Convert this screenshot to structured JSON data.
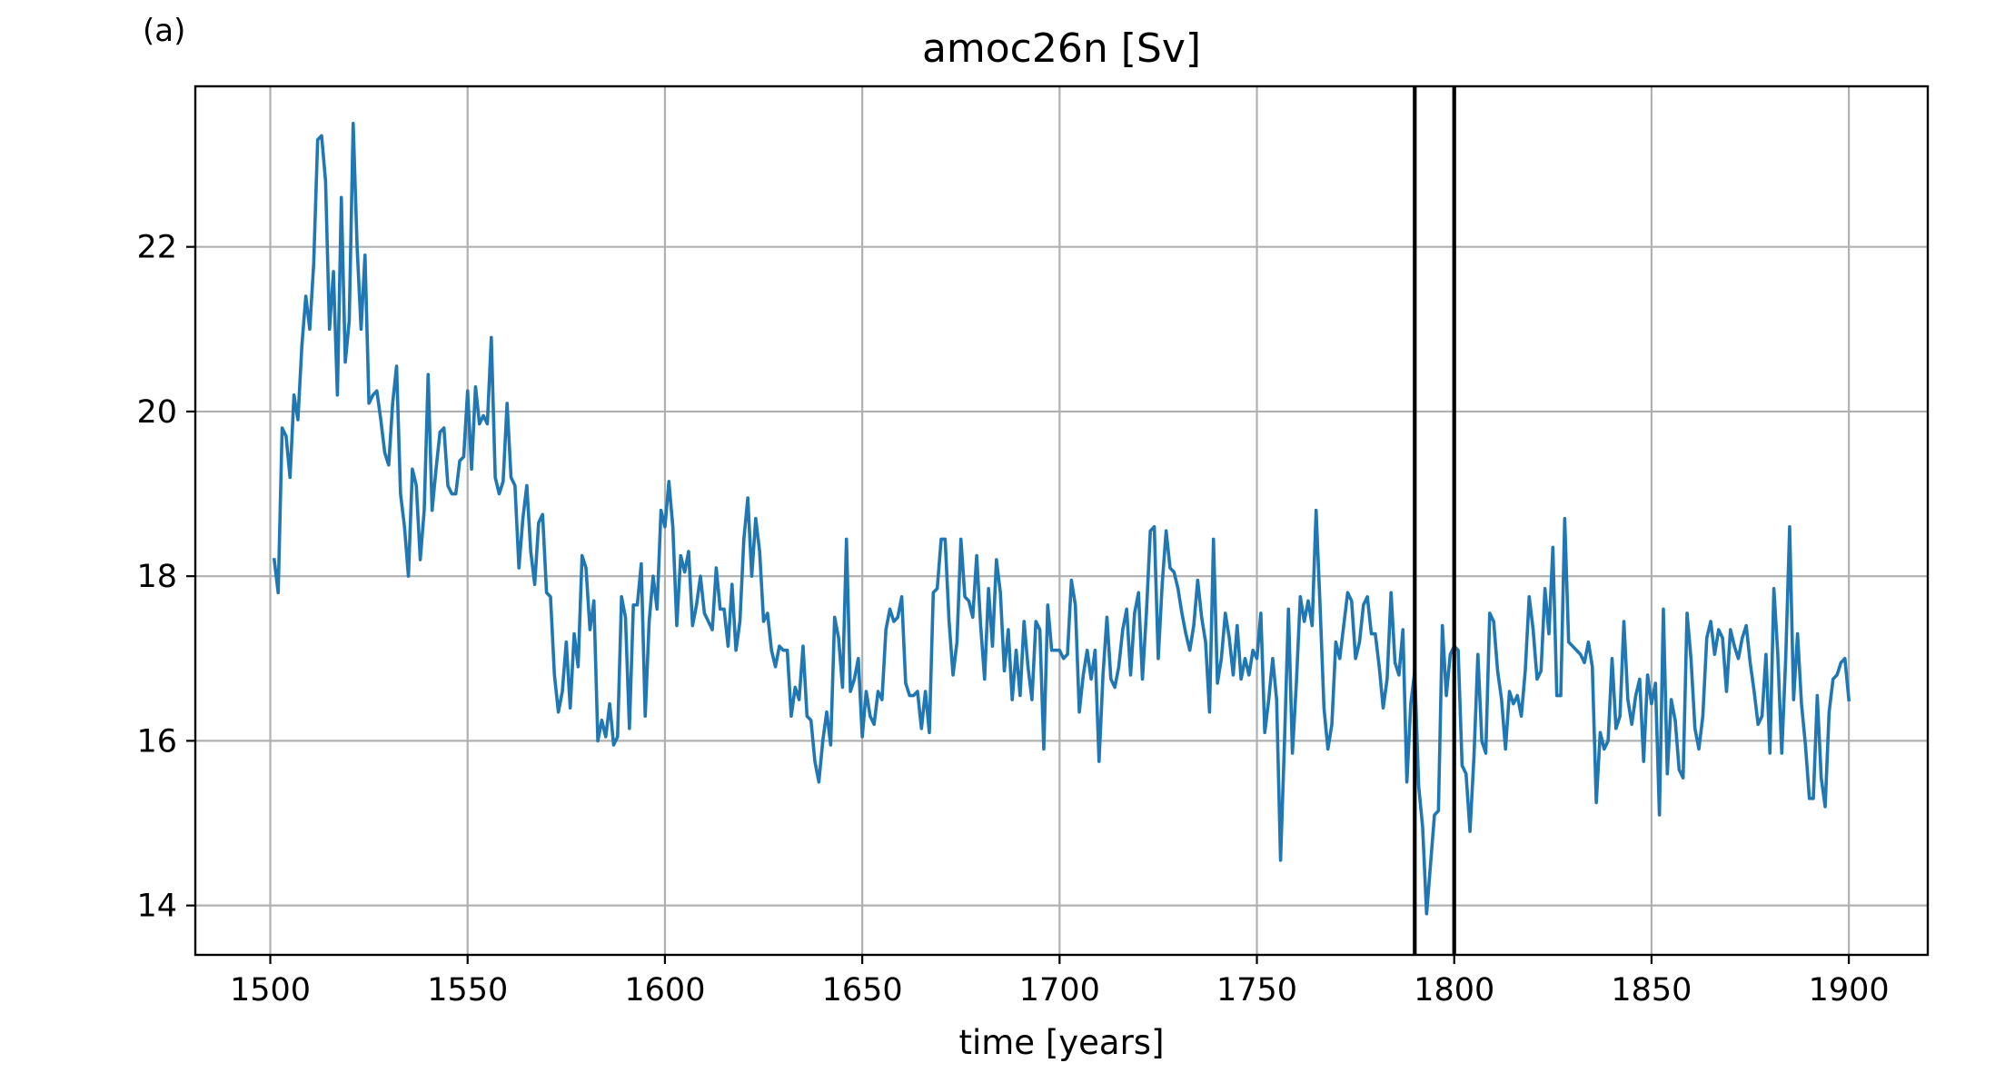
{
  "panel_label": "(a)",
  "chart_data": {
    "type": "line",
    "title": "amoc26n [Sv]",
    "xlabel": "time [years]",
    "ylabel": "",
    "xlim": [
      1481,
      1920
    ],
    "ylim": [
      13.4,
      23.95
    ],
    "xticks": [
      1500,
      1550,
      1600,
      1650,
      1700,
      1750,
      1800,
      1850,
      1900
    ],
    "yticks": [
      14,
      16,
      18,
      20,
      22
    ],
    "grid": true,
    "line_color": "#1f77b4",
    "vlines": [
      1790,
      1800
    ],
    "vline_color": "#000000",
    "series": [
      {
        "name": "",
        "x": [
          1501,
          1502,
          1503,
          1504,
          1505,
          1506,
          1507,
          1508,
          1509,
          1510,
          1511,
          1512,
          1513,
          1514,
          1515,
          1516,
          1517,
          1518,
          1519,
          1520,
          1521,
          1522,
          1523,
          1524,
          1525,
          1526,
          1527,
          1528,
          1529,
          1530,
          1531,
          1532,
          1533,
          1534,
          1535,
          1536,
          1537,
          1538,
          1539,
          1540,
          1541,
          1542,
          1543,
          1544,
          1545,
          1546,
          1547,
          1548,
          1549,
          1550,
          1551,
          1552,
          1553,
          1554,
          1555,
          1556,
          1557,
          1558,
          1559,
          1560,
          1561,
          1562,
          1563,
          1564,
          1565,
          1566,
          1567,
          1568,
          1569,
          1570,
          1571,
          1572,
          1573,
          1574,
          1575,
          1576,
          1577,
          1578,
          1579,
          1580,
          1581,
          1582,
          1583,
          1584,
          1585,
          1586,
          1587,
          1588,
          1589,
          1590,
          1591,
          1592,
          1593,
          1594,
          1595,
          1596,
          1597,
          1598,
          1599,
          1600,
          1601,
          1602,
          1603,
          1604,
          1605,
          1606,
          1607,
          1608,
          1609,
          1610,
          1611,
          1612,
          1613,
          1614,
          1615,
          1616,
          1617,
          1618,
          1619,
          1620,
          1621,
          1622,
          1623,
          1624,
          1625,
          1626,
          1627,
          1628,
          1629,
          1630,
          1631,
          1632,
          1633,
          1634,
          1635,
          1636,
          1637,
          1638,
          1639,
          1640,
          1641,
          1642,
          1643,
          1644,
          1645,
          1646,
          1647,
          1648,
          1649,
          1650,
          1651,
          1652,
          1653,
          1654,
          1655,
          1656,
          1657,
          1658,
          1659,
          1660,
          1661,
          1662,
          1663,
          1664,
          1665,
          1666,
          1667,
          1668,
          1669,
          1670,
          1671,
          1672,
          1673,
          1674,
          1675,
          1676,
          1677,
          1678,
          1679,
          1680,
          1681,
          1682,
          1683,
          1684,
          1685,
          1686,
          1687,
          1688,
          1689,
          1690,
          1691,
          1692,
          1693,
          1694,
          1695,
          1696,
          1697,
          1698,
          1699,
          1700,
          1701,
          1702,
          1703,
          1704,
          1705,
          1706,
          1707,
          1708,
          1709,
          1710,
          1711,
          1712,
          1713,
          1714,
          1715,
          1716,
          1717,
          1718,
          1719,
          1720,
          1721,
          1722,
          1723,
          1724,
          1725,
          1726,
          1727,
          1728,
          1729,
          1730,
          1731,
          1732,
          1733,
          1734,
          1735,
          1736,
          1737,
          1738,
          1739,
          1740,
          1741,
          1742,
          1743,
          1744,
          1745,
          1746,
          1747,
          1748,
          1749,
          1750,
          1751,
          1752,
          1753,
          1754,
          1755,
          1756,
          1757,
          1758,
          1759,
          1760,
          1761,
          1762,
          1763,
          1764,
          1765,
          1766,
          1767,
          1768,
          1769,
          1770,
          1771,
          1772,
          1773,
          1774,
          1775,
          1776,
          1777,
          1778,
          1779,
          1780,
          1781,
          1782,
          1783,
          1784,
          1785,
          1786,
          1787,
          1788,
          1789,
          1790,
          1791,
          1792,
          1793,
          1794,
          1795,
          1796,
          1797,
          1798,
          1799,
          1800,
          1801,
          1802,
          1803,
          1804,
          1805,
          1806,
          1807,
          1808,
          1809,
          1810,
          1811,
          1812,
          1813,
          1814,
          1815,
          1816,
          1817,
          1818,
          1819,
          1820,
          1821,
          1822,
          1823,
          1824,
          1825,
          1826,
          1827,
          1828,
          1829,
          1830,
          1831,
          1832,
          1833,
          1834,
          1835,
          1836,
          1837,
          1838,
          1839,
          1840,
          1841,
          1842,
          1843,
          1844,
          1845,
          1846,
          1847,
          1848,
          1849,
          1850,
          1851,
          1852,
          1853,
          1854,
          1855,
          1856,
          1857,
          1858,
          1859,
          1860,
          1861,
          1862,
          1863,
          1864,
          1865,
          1866,
          1867,
          1868,
          1869,
          1870,
          1871,
          1872,
          1873,
          1874,
          1875,
          1876,
          1877,
          1878,
          1879,
          1880,
          1881,
          1882,
          1883,
          1884,
          1885,
          1886,
          1887,
          1888,
          1889,
          1890,
          1891,
          1892,
          1893,
          1894,
          1895,
          1896,
          1897,
          1898,
          1899,
          1900
        ],
        "y": [
          18.2,
          17.8,
          19.8,
          19.7,
          19.2,
          20.2,
          19.9,
          20.8,
          21.4,
          21.0,
          21.8,
          23.3,
          23.35,
          22.8,
          21.0,
          21.7,
          20.2,
          22.6,
          20.6,
          21.1,
          23.5,
          22.0,
          21.0,
          21.9,
          20.1,
          20.2,
          20.25,
          19.9,
          19.5,
          19.35,
          20.1,
          20.55,
          19.0,
          18.6,
          18.0,
          19.3,
          19.1,
          18.2,
          18.8,
          20.45,
          18.8,
          19.3,
          19.75,
          19.8,
          19.1,
          19.0,
          19.0,
          19.4,
          19.45,
          20.25,
          19.3,
          20.3,
          19.85,
          19.95,
          19.85,
          20.9,
          19.2,
          19.0,
          19.15,
          20.1,
          19.2,
          19.1,
          18.1,
          18.7,
          19.1,
          18.3,
          17.9,
          18.65,
          18.75,
          17.8,
          17.75,
          16.8,
          16.35,
          16.6,
          17.2,
          16.4,
          17.3,
          16.9,
          18.25,
          18.1,
          17.35,
          17.7,
          16.0,
          16.25,
          16.05,
          16.45,
          15.95,
          16.05,
          17.75,
          17.5,
          16.15,
          17.65,
          17.65,
          18.15,
          16.3,
          17.45,
          18.0,
          17.6,
          18.8,
          18.6,
          19.15,
          18.6,
          17.4,
          18.25,
          18.05,
          18.3,
          17.4,
          17.65,
          18.0,
          17.55,
          17.45,
          17.35,
          18.1,
          17.6,
          17.6,
          17.15,
          17.9,
          17.1,
          17.45,
          18.45,
          18.95,
          18.0,
          18.7,
          18.3,
          17.45,
          17.55,
          17.1,
          16.9,
          17.15,
          17.1,
          17.1,
          16.3,
          16.65,
          16.5,
          17.15,
          16.3,
          16.25,
          15.75,
          15.5,
          16.0,
          16.35,
          15.95,
          17.5,
          17.25,
          16.65,
          18.45,
          16.6,
          16.75,
          17.0,
          16.05,
          16.6,
          16.3,
          16.2,
          16.6,
          16.5,
          17.35,
          17.6,
          17.45,
          17.5,
          17.75,
          16.7,
          16.55,
          16.55,
          16.6,
          16.15,
          16.6,
          16.1,
          17.8,
          17.85,
          18.45,
          18.45,
          17.45,
          16.8,
          17.2,
          18.45,
          17.75,
          17.7,
          17.5,
          18.25,
          17.4,
          16.75,
          17.85,
          17.15,
          18.2,
          17.8,
          16.85,
          17.35,
          16.5,
          17.1,
          16.55,
          17.45,
          16.9,
          16.5,
          17.45,
          17.35,
          15.9,
          17.65,
          17.1,
          17.1,
          17.1,
          17.0,
          17.05,
          17.95,
          17.65,
          16.35,
          16.8,
          17.1,
          16.75,
          17.1,
          15.75,
          16.8,
          17.5,
          16.75,
          16.65,
          16.9,
          17.35,
          17.6,
          16.8,
          17.55,
          17.8,
          16.75,
          17.55,
          18.55,
          18.6,
          17.0,
          17.9,
          18.55,
          18.1,
          18.05,
          17.85,
          17.55,
          17.3,
          17.1,
          17.4,
          17.95,
          17.5,
          17.2,
          16.35,
          18.45,
          16.7,
          17.0,
          17.55,
          17.25,
          16.8,
          17.4,
          16.75,
          17.0,
          16.8,
          17.1,
          17.0,
          17.55,
          16.1,
          16.5,
          17.0,
          16.5,
          14.55,
          16.0,
          17.6,
          15.85,
          16.7,
          17.75,
          17.45,
          17.7,
          17.4,
          18.8,
          17.65,
          16.4,
          15.9,
          16.2,
          17.2,
          17.0,
          17.4,
          17.8,
          17.7,
          17.0,
          17.2,
          17.65,
          17.75,
          17.3,
          17.3,
          16.9,
          16.4,
          16.75,
          17.8,
          16.95,
          16.8,
          17.35,
          15.5,
          16.45,
          16.85,
          15.45,
          14.95,
          13.9,
          14.5,
          15.1,
          15.15,
          17.4,
          16.55,
          17.05,
          17.15,
          17.1,
          15.7,
          15.6,
          14.9,
          15.8,
          17.05,
          16.0,
          15.85,
          17.55,
          17.45,
          16.85,
          16.5,
          15.9,
          16.6,
          16.45,
          16.55,
          16.3,
          16.85,
          17.75,
          17.35,
          16.75,
          16.85,
          17.85,
          17.3,
          18.35,
          16.55,
          16.55,
          18.7,
          17.2,
          17.15,
          17.1,
          17.05,
          16.95,
          17.2,
          16.9,
          15.25,
          16.1,
          15.9,
          16.0,
          17.0,
          16.15,
          16.3,
          17.45,
          16.5,
          16.2,
          16.55,
          16.75,
          15.75,
          16.8,
          16.45,
          16.7,
          15.1,
          17.6,
          15.6,
          16.5,
          16.25,
          15.65,
          15.55,
          17.55,
          17.0,
          16.15,
          15.9,
          16.3,
          17.25,
          17.45,
          17.05,
          17.35,
          17.25,
          16.6,
          17.35,
          17.15,
          17.0,
          17.25,
          17.4,
          16.95,
          16.6,
          16.2,
          16.3,
          17.05,
          15.85,
          17.85,
          17.05,
          15.85,
          17.0,
          18.6,
          16.5,
          17.3,
          16.45,
          15.95,
          15.3,
          15.3,
          16.55,
          15.55,
          15.2,
          16.35,
          16.75,
          16.8,
          16.95,
          17.0,
          16.5
        ]
      }
    ]
  }
}
